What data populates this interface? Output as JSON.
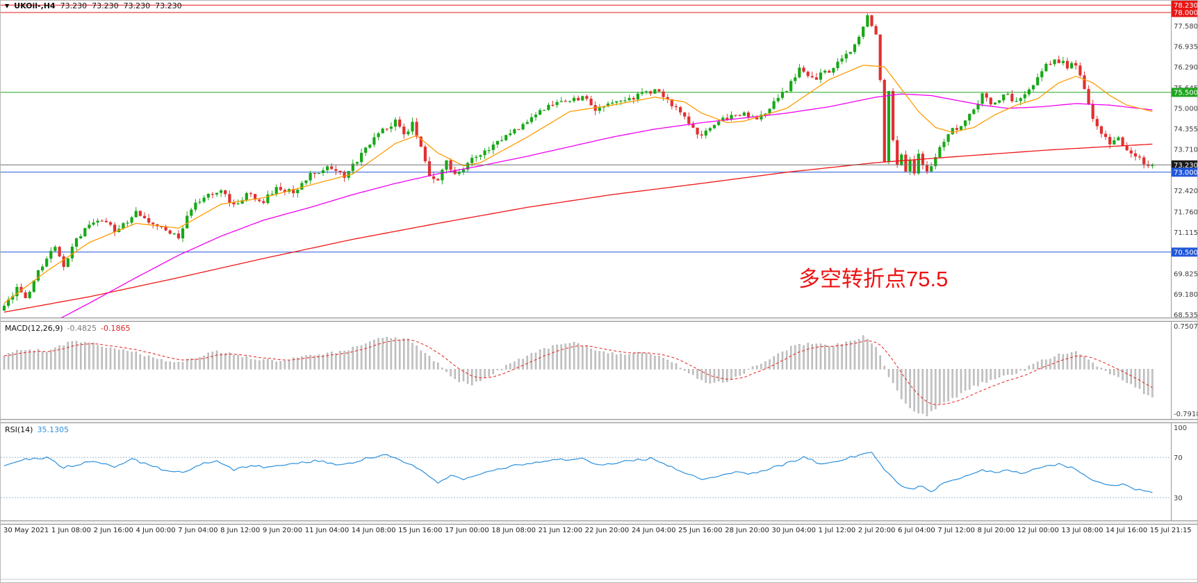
{
  "top_bar": {
    "dropdown_icon": "▼",
    "symbol_period": "UKOil-,H4",
    "ohlc": [
      "73.230",
      "73.230",
      "73.230",
      "73.230"
    ]
  },
  "annotation": {
    "text": "多空转折点75.5",
    "color": "#ee1212"
  },
  "macd_panel": {
    "label": "MACD(12,26,9)",
    "value_main": "-0.4825",
    "value_signal": "-0.1865",
    "axis_labels": [
      {
        "text": "0.7507",
        "v": 0.7507
      },
      {
        "text": "-0.7918",
        "v": -0.7918
      }
    ]
  },
  "rsi_panel": {
    "label": "RSI(14)",
    "value": "35.1305",
    "axis_labels": [
      {
        "text": "100",
        "v": 100
      },
      {
        "text": "70",
        "v": 70
      },
      {
        "text": "30",
        "v": 30
      }
    ]
  },
  "chart_data": {
    "type": "candlestick",
    "symbol": "UKOil-",
    "timeframe": "H4",
    "current_price": 73.23,
    "num_candles": 271,
    "ylim": [
      68.45,
      78.37
    ],
    "colors": {
      "up": "#18a818",
      "down": "#e03030",
      "ma_fast": "#ff9c00",
      "ma_mid": "#f000f0",
      "ma_slow": "#f01414",
      "macd_hist": "#c9c9c9",
      "macd_hist_stroke": "#8f8f8f",
      "macd_signal": "#e83030",
      "rsi_line": "#2a8fdd",
      "rsi_level": "#9fb8cf",
      "current_line": "#6e6e6e",
      "badge": {
        "red": "#e81717",
        "green": "#1fa51f",
        "blue": "#2257d8",
        "current": "#1a1a1a"
      }
    },
    "hlines": [
      {
        "price": 78.23,
        "color": "#e81717"
      },
      {
        "price": 78.0,
        "color": "#e81717"
      },
      {
        "price": 75.5,
        "color": "#1fa51f"
      },
      {
        "price": 73.0,
        "color": "#2257d8"
      },
      {
        "price": 70.5,
        "color": "#2257d8"
      }
    ],
    "y_axis_labels": [
      {
        "text": "78.230",
        "price": 78.23,
        "style": "red"
      },
      {
        "text": "78.000",
        "price": 78.0,
        "style": "red"
      },
      {
        "text": "77.580",
        "price": 77.58,
        "style": "tick"
      },
      {
        "text": "76.935",
        "price": 76.935,
        "style": "tick"
      },
      {
        "text": "76.290",
        "price": 76.29,
        "style": "tick"
      },
      {
        "text": "75.645",
        "price": 75.645,
        "style": "tick"
      },
      {
        "text": "75.500",
        "price": 75.5,
        "style": "green"
      },
      {
        "text": "75.000",
        "price": 75.0,
        "style": "tick"
      },
      {
        "text": "74.355",
        "price": 74.355,
        "style": "tick"
      },
      {
        "text": "73.710",
        "price": 73.71,
        "style": "tick"
      },
      {
        "text": "73.230",
        "price": 73.23,
        "style": "current"
      },
      {
        "text": "73.000",
        "price": 73.0,
        "style": "blue"
      },
      {
        "text": "72.420",
        "price": 72.42,
        "style": "tick"
      },
      {
        "text": "71.760",
        "price": 71.76,
        "style": "tick"
      },
      {
        "text": "71.115",
        "price": 71.115,
        "style": "tick"
      },
      {
        "text": "70.500",
        "price": 70.5,
        "style": "blue"
      },
      {
        "text": "69.825",
        "price": 69.825,
        "style": "tick"
      },
      {
        "text": "69.180",
        "price": 69.18,
        "style": "tick"
      },
      {
        "text": "68.535",
        "price": 68.535,
        "style": "tick"
      }
    ],
    "x_labels": [
      "30 May 2021",
      "1 Jun 08:00",
      "2 Jun 16:00",
      "4 Jun 00:00",
      "7 Jun 04:00",
      "8 Jun 12:00",
      "9 Jun 20:00",
      "11 Jun 04:00",
      "14 Jun 08:00",
      "15 Jun 16:00",
      "17 Jun 00:00",
      "18 Jun 08:00",
      "21 Jun 12:00",
      "22 Jun 20:00",
      "24 Jun 04:00",
      "25 Jun 16:00",
      "28 Jun 20:00",
      "30 Jun 04:00",
      "1 Jul 12:00",
      "2 Jul 20:00",
      "6 Jul 04:00",
      "7 Jul 12:00",
      "8 Jul 20:00",
      "12 Jul 00:00",
      "13 Jul 08:00",
      "14 Jul 16:00",
      "15 Jul 21:15"
    ],
    "close_anchors": [
      [
        0,
        68.75
      ],
      [
        3,
        69.4
      ],
      [
        5,
        69.05
      ],
      [
        8,
        69.9
      ],
      [
        10,
        70.3
      ],
      [
        12,
        70.65
      ],
      [
        14,
        70.0
      ],
      [
        17,
        70.9
      ],
      [
        20,
        71.3
      ],
      [
        23,
        71.55
      ],
      [
        26,
        71.2
      ],
      [
        29,
        71.5
      ],
      [
        31,
        71.75
      ],
      [
        34,
        71.45
      ],
      [
        38,
        71.2
      ],
      [
        41,
        71.0
      ],
      [
        44,
        71.9
      ],
      [
        48,
        72.3
      ],
      [
        51,
        72.45
      ],
      [
        54,
        71.95
      ],
      [
        57,
        72.3
      ],
      [
        61,
        72.1
      ],
      [
        64,
        72.5
      ],
      [
        68,
        72.4
      ],
      [
        72,
        72.9
      ],
      [
        76,
        73.1
      ],
      [
        80,
        72.9
      ],
      [
        82,
        73.2
      ],
      [
        86,
        73.9
      ],
      [
        89,
        74.3
      ],
      [
        92,
        74.6
      ],
      [
        94,
        74.2
      ],
      [
        96,
        74.5
      ],
      [
        98,
        73.8
      ],
      [
        100,
        72.95
      ],
      [
        102,
        72.7
      ],
      [
        104,
        73.3
      ],
      [
        106,
        72.9
      ],
      [
        108,
        73.05
      ],
      [
        110,
        73.4
      ],
      [
        112,
        73.55
      ],
      [
        115,
        73.8
      ],
      [
        118,
        74.1
      ],
      [
        121,
        74.4
      ],
      [
        123,
        74.6
      ],
      [
        126,
        74.9
      ],
      [
        129,
        75.1
      ],
      [
        133,
        75.2
      ],
      [
        136,
        75.35
      ],
      [
        139,
        75.0
      ],
      [
        143,
        75.2
      ],
      [
        147,
        75.3
      ],
      [
        150,
        75.45
      ],
      [
        153,
        75.55
      ],
      [
        156,
        75.3
      ],
      [
        159,
        74.8
      ],
      [
        162,
        74.4
      ],
      [
        164,
        74.1
      ],
      [
        167,
        74.5
      ],
      [
        170,
        74.7
      ],
      [
        174,
        74.8
      ],
      [
        177,
        74.6
      ],
      [
        180,
        75.0
      ],
      [
        184,
        75.6
      ],
      [
        187,
        76.25
      ],
      [
        190,
        75.9
      ],
      [
        194,
        76.2
      ],
      [
        197,
        76.5
      ],
      [
        200,
        77.0
      ],
      [
        203,
        77.85
      ],
      [
        205,
        77.35
      ],
      [
        206,
        75.9
      ],
      [
        207,
        73.4
      ],
      [
        208,
        75.6
      ],
      [
        209,
        74.0
      ],
      [
        210,
        73.3
      ],
      [
        211,
        73.6
      ],
      [
        212,
        73.0
      ],
      [
        213,
        73.4
      ],
      [
        214,
        72.9
      ],
      [
        215,
        73.5
      ],
      [
        217,
        72.95
      ],
      [
        219,
        73.5
      ],
      [
        221,
        74.0
      ],
      [
        223,
        74.3
      ],
      [
        225,
        74.45
      ],
      [
        228,
        75.0
      ],
      [
        230,
        75.4
      ],
      [
        232,
        75.2
      ],
      [
        234,
        75.3
      ],
      [
        236,
        75.4
      ],
      [
        238,
        75.2
      ],
      [
        240,
        75.5
      ],
      [
        242,
        75.8
      ],
      [
        244,
        76.2
      ],
      [
        246,
        76.45
      ],
      [
        248,
        76.5
      ],
      [
        250,
        76.3
      ],
      [
        252,
        76.4
      ],
      [
        254,
        75.6
      ],
      [
        256,
        74.6
      ],
      [
        258,
        74.2
      ],
      [
        260,
        73.9
      ],
      [
        262,
        74.1
      ],
      [
        264,
        73.7
      ],
      [
        266,
        73.5
      ],
      [
        268,
        73.3
      ],
      [
        270,
        73.23
      ]
    ],
    "ma_fast_anchors": [
      [
        0,
        68.9
      ],
      [
        10,
        69.9
      ],
      [
        20,
        70.8
      ],
      [
        31,
        71.4
      ],
      [
        41,
        71.25
      ],
      [
        51,
        72.0
      ],
      [
        61,
        72.2
      ],
      [
        72,
        72.6
      ],
      [
        82,
        72.95
      ],
      [
        92,
        73.9
      ],
      [
        97,
        74.15
      ],
      [
        102,
        73.6
      ],
      [
        108,
        73.2
      ],
      [
        112,
        73.3
      ],
      [
        123,
        74.1
      ],
      [
        133,
        74.9
      ],
      [
        143,
        75.1
      ],
      [
        153,
        75.35
      ],
      [
        160,
        75.2
      ],
      [
        164,
        74.85
      ],
      [
        170,
        74.55
      ],
      [
        174,
        74.6
      ],
      [
        184,
        75.0
      ],
      [
        194,
        75.9
      ],
      [
        202,
        76.35
      ],
      [
        207,
        76.3
      ],
      [
        211,
        75.6
      ],
      [
        215,
        74.9
      ],
      [
        219,
        74.4
      ],
      [
        223,
        74.25
      ],
      [
        228,
        74.4
      ],
      [
        233,
        74.8
      ],
      [
        238,
        75.1
      ],
      [
        243,
        75.3
      ],
      [
        248,
        75.8
      ],
      [
        252,
        76.0
      ],
      [
        256,
        75.8
      ],
      [
        260,
        75.4
      ],
      [
        264,
        75.1
      ],
      [
        270,
        74.9
      ]
    ],
    "ma_mid_anchors": [
      [
        0,
        67.6
      ],
      [
        10,
        68.2
      ],
      [
        20,
        68.9
      ],
      [
        31,
        69.7
      ],
      [
        41,
        70.4
      ],
      [
        51,
        71.0
      ],
      [
        61,
        71.5
      ],
      [
        72,
        71.9
      ],
      [
        82,
        72.3
      ],
      [
        92,
        72.65
      ],
      [
        102,
        72.95
      ],
      [
        112,
        73.2
      ],
      [
        123,
        73.5
      ],
      [
        133,
        73.8
      ],
      [
        143,
        74.1
      ],
      [
        153,
        74.35
      ],
      [
        164,
        74.55
      ],
      [
        174,
        74.7
      ],
      [
        184,
        74.85
      ],
      [
        194,
        75.05
      ],
      [
        205,
        75.35
      ],
      [
        211,
        75.45
      ],
      [
        218,
        75.4
      ],
      [
        224,
        75.25
      ],
      [
        230,
        75.1
      ],
      [
        236,
        75.0
      ],
      [
        244,
        75.05
      ],
      [
        252,
        75.15
      ],
      [
        260,
        75.1
      ],
      [
        270,
        74.95
      ]
    ],
    "ma_slow_anchors": [
      [
        0,
        68.62
      ],
      [
        20,
        69.1
      ],
      [
        41,
        69.7
      ],
      [
        61,
        70.3
      ],
      [
        82,
        70.9
      ],
      [
        102,
        71.4
      ],
      [
        123,
        71.9
      ],
      [
        143,
        72.3
      ],
      [
        164,
        72.65
      ],
      [
        184,
        73.0
      ],
      [
        205,
        73.3
      ],
      [
        225,
        73.5
      ],
      [
        246,
        73.7
      ],
      [
        270,
        73.88
      ]
    ],
    "macd": {
      "ylim": [
        -0.86,
        0.82
      ],
      "current_main": -0.4825,
      "current_signal": -0.1865,
      "anchors": [
        [
          0,
          0.25
        ],
        [
          5,
          0.35
        ],
        [
          10,
          0.3
        ],
        [
          15,
          0.45
        ],
        [
          20,
          0.48
        ],
        [
          25,
          0.36
        ],
        [
          30,
          0.3
        ],
        [
          35,
          0.2
        ],
        [
          40,
          0.1
        ],
        [
          45,
          0.2
        ],
        [
          50,
          0.3
        ],
        [
          55,
          0.24
        ],
        [
          60,
          0.16
        ],
        [
          65,
          0.14
        ],
        [
          70,
          0.22
        ],
        [
          75,
          0.26
        ],
        [
          80,
          0.3
        ],
        [
          85,
          0.45
        ],
        [
          90,
          0.55
        ],
        [
          95,
          0.5
        ],
        [
          100,
          0.22
        ],
        [
          103,
          0.02
        ],
        [
          106,
          -0.18
        ],
        [
          110,
          -0.25
        ],
        [
          114,
          -0.12
        ],
        [
          118,
          0.05
        ],
        [
          122,
          0.2
        ],
        [
          126,
          0.32
        ],
        [
          130,
          0.42
        ],
        [
          134,
          0.46
        ],
        [
          138,
          0.36
        ],
        [
          142,
          0.28
        ],
        [
          146,
          0.24
        ],
        [
          150,
          0.28
        ],
        [
          154,
          0.24
        ],
        [
          158,
          0.08
        ],
        [
          162,
          -0.12
        ],
        [
          166,
          -0.26
        ],
        [
          170,
          -0.2
        ],
        [
          174,
          -0.06
        ],
        [
          178,
          0.1
        ],
        [
          182,
          0.26
        ],
        [
          186,
          0.42
        ],
        [
          190,
          0.44
        ],
        [
          194,
          0.4
        ],
        [
          198,
          0.46
        ],
        [
          202,
          0.56
        ],
        [
          205,
          0.38
        ],
        [
          208,
          -0.12
        ],
        [
          211,
          -0.52
        ],
        [
          214,
          -0.73
        ],
        [
          217,
          -0.79
        ],
        [
          220,
          -0.62
        ],
        [
          224,
          -0.46
        ],
        [
          228,
          -0.3
        ],
        [
          232,
          -0.18
        ],
        [
          236,
          -0.1
        ],
        [
          240,
          0.0
        ],
        [
          244,
          0.14
        ],
        [
          248,
          0.26
        ],
        [
          252,
          0.3
        ],
        [
          256,
          0.1
        ],
        [
          260,
          -0.06
        ],
        [
          264,
          -0.22
        ],
        [
          267,
          -0.36
        ],
        [
          270,
          -0.4825
        ]
      ]
    },
    "rsi": {
      "levels": [
        70,
        30
      ],
      "current": 35.1305,
      "anchors": [
        [
          0,
          62
        ],
        [
          5,
          68
        ],
        [
          10,
          70
        ],
        [
          14,
          60
        ],
        [
          18,
          64
        ],
        [
          22,
          66
        ],
        [
          26,
          61
        ],
        [
          30,
          68
        ],
        [
          34,
          63
        ],
        [
          38,
          57
        ],
        [
          42,
          55
        ],
        [
          46,
          63
        ],
        [
          50,
          66
        ],
        [
          54,
          58
        ],
        [
          58,
          62
        ],
        [
          62,
          60
        ],
        [
          66,
          63
        ],
        [
          70,
          65
        ],
        [
          74,
          67
        ],
        [
          78,
          62
        ],
        [
          82,
          65
        ],
        [
          86,
          70
        ],
        [
          90,
          73
        ],
        [
          94,
          66
        ],
        [
          98,
          57
        ],
        [
          102,
          45
        ],
        [
          105,
          52
        ],
        [
          108,
          48
        ],
        [
          112,
          54
        ],
        [
          116,
          58
        ],
        [
          120,
          62
        ],
        [
          124,
          64
        ],
        [
          128,
          67
        ],
        [
          132,
          68
        ],
        [
          136,
          70
        ],
        [
          140,
          62
        ],
        [
          144,
          65
        ],
        [
          148,
          67
        ],
        [
          152,
          69
        ],
        [
          156,
          62
        ],
        [
          160,
          55
        ],
        [
          164,
          48
        ],
        [
          168,
          52
        ],
        [
          172,
          56
        ],
        [
          176,
          54
        ],
        [
          180,
          59
        ],
        [
          184,
          64
        ],
        [
          188,
          70
        ],
        [
          192,
          64
        ],
        [
          196,
          67
        ],
        [
          200,
          71
        ],
        [
          204,
          76
        ],
        [
          207,
          58
        ],
        [
          210,
          44
        ],
        [
          213,
          38
        ],
        [
          216,
          42
        ],
        [
          218,
          36
        ],
        [
          221,
          45
        ],
        [
          224,
          49
        ],
        [
          227,
          53
        ],
        [
          230,
          57
        ],
        [
          233,
          55
        ],
        [
          236,
          57
        ],
        [
          239,
          54
        ],
        [
          242,
          58
        ],
        [
          245,
          61
        ],
        [
          248,
          63
        ],
        [
          251,
          60
        ],
        [
          254,
          52
        ],
        [
          257,
          46
        ],
        [
          260,
          42
        ],
        [
          263,
          44
        ],
        [
          266,
          38
        ],
        [
          270,
          35.13
        ]
      ]
    }
  }
}
